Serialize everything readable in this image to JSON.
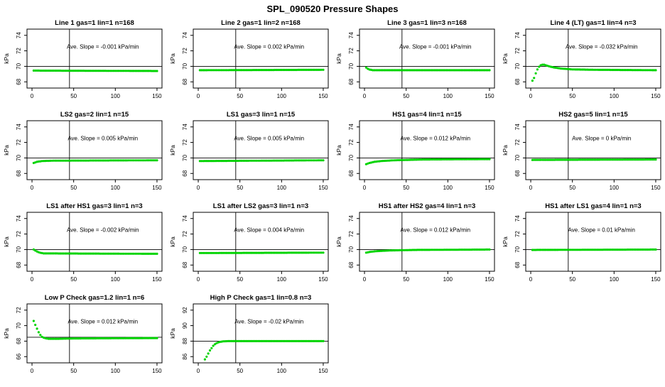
{
  "page_title": "SPL_090520  Pressure Shapes",
  "chart_data": {
    "type": "scatter",
    "x_ticks": [
      0,
      50,
      100,
      150
    ],
    "xlim": [
      -6,
      156
    ],
    "ylabel": "kPa",
    "dot_color": "#00d400",
    "axis_color": "#000000",
    "ref_x": 45,
    "panels": [
      {
        "title": "Line 1 gas=1 lin=1 n=168",
        "slope_label": "Ave. Slope =  -0.001  kPa/min",
        "y_ticks": [
          68,
          70,
          72,
          74
        ],
        "ylim": [
          67.2,
          74.8
        ],
        "ref_y": 70,
        "label_y": 72.3,
        "shape": [
          [
            2,
            69.45
          ],
          [
            150,
            69.4
          ]
        ]
      },
      {
        "title": "Line 2 gas=1 lin=2 n=168",
        "slope_label": "Ave. Slope =  0.002  kPa/min",
        "y_ticks": [
          68,
          70,
          72,
          74
        ],
        "ylim": [
          67.2,
          74.8
        ],
        "ref_y": 70,
        "label_y": 72.3,
        "shape": [
          [
            2,
            69.5
          ],
          [
            150,
            69.55
          ]
        ]
      },
      {
        "title": "Line 3 gas=1 lin=3 n=168",
        "slope_label": "Ave. Slope =  -0.001  kPa/min",
        "y_ticks": [
          68,
          70,
          72,
          74
        ],
        "ylim": [
          67.2,
          74.8
        ],
        "ref_y": 70,
        "label_y": 72.3,
        "shape": [
          [
            2,
            69.85
          ],
          [
            5,
            69.6
          ],
          [
            10,
            69.5
          ],
          [
            150,
            69.5
          ]
        ]
      },
      {
        "title": "Line 4 (LT) gas=1 lin=4 n=3",
        "slope_label": "Ave. Slope =  -0.032  kPa/min",
        "y_ticks": [
          68,
          70,
          72,
          74
        ],
        "ylim": [
          67.2,
          74.8
        ],
        "ref_y": 70,
        "label_y": 72.3,
        "shape": [
          [
            2,
            68.15
          ],
          [
            4,
            68.5
          ],
          [
            6,
            69.1
          ],
          [
            8,
            69.6
          ],
          [
            10,
            69.95
          ],
          [
            12,
            70.15
          ],
          [
            15,
            70.25
          ],
          [
            18,
            70.15
          ],
          [
            22,
            70.0
          ],
          [
            28,
            69.85
          ],
          [
            36,
            69.72
          ],
          [
            50,
            69.6
          ],
          [
            80,
            69.55
          ],
          [
            150,
            69.5
          ]
        ]
      },
      {
        "title": "LS2 gas=2 lin=1 n=15",
        "slope_label": "Ave. Slope =  0.005  kPa/min",
        "y_ticks": [
          68,
          70,
          72,
          74
        ],
        "ylim": [
          67.2,
          74.8
        ],
        "ref_y": 70,
        "label_y": 72.3,
        "shape": [
          [
            2,
            69.35
          ],
          [
            6,
            69.5
          ],
          [
            12,
            69.6
          ],
          [
            25,
            69.65
          ],
          [
            150,
            69.7
          ]
        ]
      },
      {
        "title": "LS1 gas=3 lin=1 n=15",
        "slope_label": "Ave. Slope =  0.005  kPa/min",
        "y_ticks": [
          68,
          70,
          72,
          74
        ],
        "ylim": [
          67.2,
          74.8
        ],
        "ref_y": 70,
        "label_y": 72.3,
        "shape": [
          [
            2,
            69.6
          ],
          [
            150,
            69.7
          ]
        ]
      },
      {
        "title": "HS1 gas=4 lin=1 n=15",
        "slope_label": "Ave. Slope =  0.012  kPa/min",
        "y_ticks": [
          68,
          70,
          72,
          74
        ],
        "ylim": [
          67.2,
          74.8
        ],
        "ref_y": 70,
        "label_y": 72.3,
        "shape": [
          [
            2,
            69.2
          ],
          [
            6,
            69.35
          ],
          [
            12,
            69.5
          ],
          [
            20,
            69.6
          ],
          [
            35,
            69.7
          ],
          [
            70,
            69.8
          ],
          [
            150,
            69.85
          ]
        ]
      },
      {
        "title": "HS2 gas=5 lin=1 n=15",
        "slope_label": "Ave. Slope =  0  kPa/min",
        "y_ticks": [
          68,
          70,
          72,
          74
        ],
        "ylim": [
          67.2,
          74.8
        ],
        "ref_y": 70,
        "label_y": 72.3,
        "shape": [
          [
            2,
            69.75
          ],
          [
            150,
            69.8
          ]
        ]
      },
      {
        "title": "LS1 after HS1 gas=3 lin=1 n=3",
        "slope_label": "Ave. Slope =  -0.002  kPa/min",
        "y_ticks": [
          68,
          70,
          72,
          74
        ],
        "ylim": [
          67.2,
          74.8
        ],
        "ref_y": 70,
        "label_y": 72.3,
        "shape": [
          [
            2,
            70.0
          ],
          [
            5,
            69.8
          ],
          [
            9,
            69.6
          ],
          [
            14,
            69.5
          ],
          [
            150,
            69.45
          ]
        ]
      },
      {
        "title": "LS1 after LS2 gas=3 lin=1 n=3",
        "slope_label": "Ave. Slope =  0.004  kPa/min",
        "y_ticks": [
          68,
          70,
          72,
          74
        ],
        "ylim": [
          67.2,
          74.8
        ],
        "ref_y": 70,
        "label_y": 72.3,
        "shape": [
          [
            2,
            69.55
          ],
          [
            150,
            69.6
          ]
        ]
      },
      {
        "title": "HS1 after HS2 gas=4 lin=1 n=3",
        "slope_label": "Ave. Slope =  0.012  kPa/min",
        "y_ticks": [
          68,
          70,
          72,
          74
        ],
        "ylim": [
          67.2,
          74.8
        ],
        "ref_y": 70,
        "label_y": 72.3,
        "shape": [
          [
            2,
            69.6
          ],
          [
            8,
            69.72
          ],
          [
            16,
            69.8
          ],
          [
            30,
            69.88
          ],
          [
            60,
            69.95
          ],
          [
            150,
            70.0
          ]
        ]
      },
      {
        "title": "HS1 after LS1 gas=4 lin=1 n=3",
        "slope_label": "Ave. Slope =  0.01  kPa/min",
        "y_ticks": [
          68,
          70,
          72,
          74
        ],
        "ylim": [
          67.2,
          74.8
        ],
        "ref_y": 70,
        "label_y": 72.3,
        "shape": [
          [
            2,
            69.95
          ],
          [
            150,
            70.0
          ]
        ]
      },
      {
        "title": "Low P Check gas=1.2 lin=1 n=6",
        "slope_label": "Ave. Slope =  0.012  kPa/min",
        "y_ticks": [
          66,
          68,
          70,
          72
        ],
        "ylim": [
          65.2,
          72.8
        ],
        "ref_y": 68.5,
        "label_y": 70.3,
        "shape": [
          [
            2,
            70.6
          ],
          [
            4,
            70.1
          ],
          [
            6,
            69.6
          ],
          [
            8,
            69.15
          ],
          [
            10,
            68.8
          ],
          [
            12,
            68.55
          ],
          [
            15,
            68.4
          ],
          [
            20,
            68.3
          ],
          [
            30,
            68.3
          ],
          [
            50,
            68.35
          ],
          [
            150,
            68.4
          ]
        ]
      },
      {
        "title": "High P Check gas=1 lin=0.8 n=3",
        "slope_label": "Ave. Slope =  -0.02  kPa/min",
        "y_ticks": [
          86,
          88,
          90,
          92
        ],
        "ylim": [
          85.2,
          92.8
        ],
        "ref_y": 88,
        "label_y": 90.3,
        "shape": [
          [
            8,
            85.65
          ],
          [
            10,
            86.0
          ],
          [
            12,
            86.4
          ],
          [
            14,
            86.8
          ],
          [
            16,
            87.1
          ],
          [
            18,
            87.4
          ],
          [
            20,
            87.6
          ],
          [
            23,
            87.8
          ],
          [
            26,
            87.9
          ],
          [
            30,
            87.97
          ],
          [
            36,
            88.0
          ],
          [
            150,
            88.0
          ]
        ]
      }
    ]
  }
}
